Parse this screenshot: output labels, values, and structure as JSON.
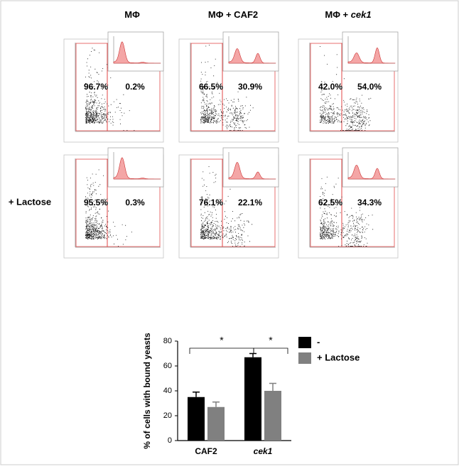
{
  "panels": {
    "column_headers": [
      {
        "prefix": "MΦ",
        "suffix": null
      },
      {
        "prefix": "MΦ + CAF2",
        "suffix": null
      },
      {
        "prefix": "MΦ + ",
        "suffix": "cek1"
      }
    ],
    "row_label": "+ Lactose",
    "percentages": [
      [
        [
          "96.7%",
          "0.2%"
        ],
        [
          "66.5%",
          "30.9%"
        ],
        [
          "42.0%",
          "54.0%"
        ]
      ],
      [
        [
          "95.5%",
          "0.3%"
        ],
        [
          "76.1%",
          "22.1%"
        ],
        [
          "62.5%",
          "34.3%"
        ]
      ]
    ]
  },
  "chart_data": {
    "type": "bar",
    "ylabel": "% of cells with bound yeasts",
    "categories": [
      "CAF2",
      "cek1"
    ],
    "series": [
      {
        "name": "-",
        "color": "#000000",
        "values": [
          35,
          67
        ],
        "errors": [
          4,
          3
        ]
      },
      {
        "name": "+ Lactose",
        "color": "#808080",
        "values": [
          27,
          40
        ],
        "errors": [
          4,
          6
        ]
      }
    ],
    "ylim": [
      0,
      80
    ],
    "yticks": [
      0,
      20,
      40,
      60,
      80
    ],
    "annotations": [
      "*",
      "*"
    ]
  }
}
